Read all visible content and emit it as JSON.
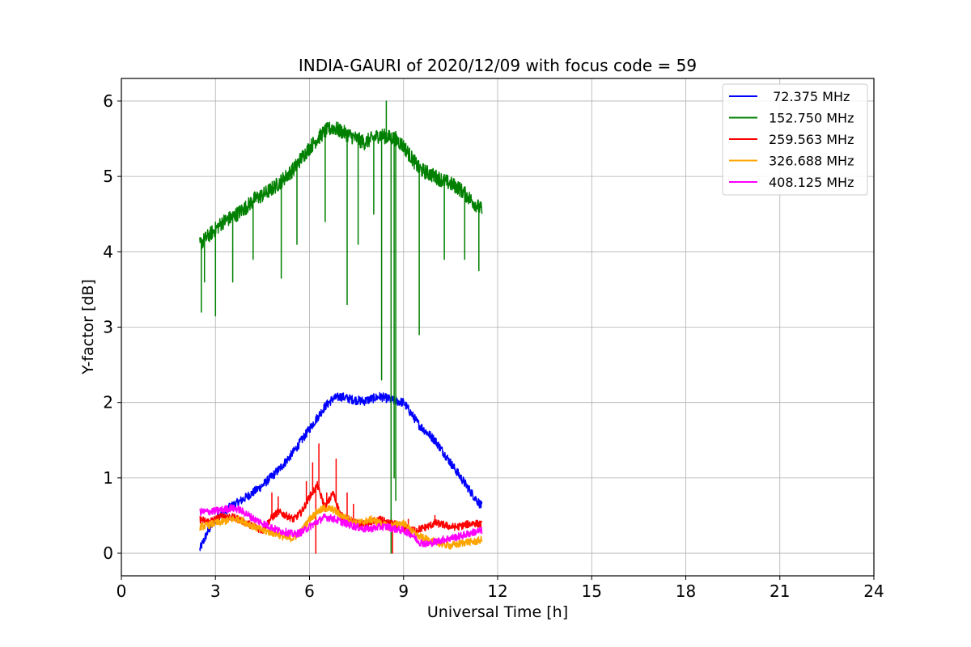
{
  "chart_data": {
    "type": "line",
    "title": "INDIA-GAURI of 2020/12/09 with focus code = 59",
    "xlabel": "Universal Time [h]",
    "ylabel": "Y-factor [dB]",
    "xlim": [
      0,
      24
    ],
    "ylim": [
      -0.3,
      6.3
    ],
    "xticks": [
      0,
      3,
      6,
      9,
      12,
      15,
      18,
      21,
      24
    ],
    "yticks": [
      0,
      1,
      2,
      3,
      4,
      5,
      6
    ],
    "grid": true,
    "legend_position": "top-right",
    "series": [
      {
        "name": " 72.375 MHz",
        "color": "#0000ff",
        "x": [
          2.5,
          2.75,
          3.0,
          3.25,
          3.5,
          3.75,
          4.0,
          4.25,
          4.5,
          4.75,
          5.0,
          5.25,
          5.5,
          5.75,
          6.0,
          6.25,
          6.5,
          6.75,
          7.0,
          7.25,
          7.5,
          7.75,
          8.0,
          8.25,
          8.5,
          8.75,
          9.0,
          9.25,
          9.5,
          9.75,
          10.0,
          10.25,
          10.5,
          10.75,
          11.0,
          11.25,
          11.5
        ],
        "values": [
          0.05,
          0.28,
          0.45,
          0.55,
          0.62,
          0.68,
          0.75,
          0.82,
          0.9,
          1.0,
          1.1,
          1.22,
          1.35,
          1.5,
          1.65,
          1.8,
          1.95,
          2.05,
          2.08,
          2.05,
          2.03,
          2.02,
          2.05,
          2.08,
          2.05,
          2.02,
          2.0,
          1.85,
          1.7,
          1.6,
          1.5,
          1.35,
          1.2,
          1.05,
          0.9,
          0.75,
          0.62
        ],
        "noise": 0.06
      },
      {
        "name": "152.750 MHz",
        "color": "#008000",
        "x": [
          2.5,
          2.75,
          3.0,
          3.25,
          3.5,
          3.75,
          4.0,
          4.25,
          4.5,
          4.75,
          5.0,
          5.25,
          5.5,
          5.75,
          6.0,
          6.25,
          6.5,
          6.75,
          7.0,
          7.25,
          7.5,
          7.75,
          8.0,
          8.25,
          8.5,
          8.75,
          9.0,
          9.25,
          9.5,
          9.75,
          10.0,
          10.25,
          10.5,
          10.75,
          11.0,
          11.25,
          11.5
        ],
        "values": [
          4.1,
          4.2,
          4.3,
          4.4,
          4.45,
          4.52,
          4.6,
          4.7,
          4.75,
          4.82,
          4.9,
          5.0,
          5.1,
          5.25,
          5.38,
          5.5,
          5.6,
          5.65,
          5.6,
          5.55,
          5.5,
          5.45,
          5.5,
          5.55,
          5.52,
          5.5,
          5.4,
          5.25,
          5.1,
          5.05,
          5.0,
          4.95,
          4.9,
          4.85,
          4.75,
          4.65,
          4.55
        ],
        "noise": 0.1,
        "dips": [
          [
            2.55,
            3.2
          ],
          [
            2.65,
            3.6
          ],
          [
            3.0,
            3.15
          ],
          [
            3.55,
            3.6
          ],
          [
            4.2,
            3.9
          ],
          [
            5.1,
            3.65
          ],
          [
            5.6,
            4.1
          ],
          [
            6.5,
            4.4
          ],
          [
            7.2,
            3.3
          ],
          [
            7.55,
            4.1
          ],
          [
            8.05,
            4.5
          ],
          [
            8.3,
            2.3
          ],
          [
            8.45,
            6.0
          ],
          [
            8.6,
            0.0
          ],
          [
            8.7,
            1.0
          ],
          [
            8.75,
            0.7
          ],
          [
            9.5,
            2.9
          ],
          [
            10.3,
            3.9
          ],
          [
            10.95,
            3.9
          ],
          [
            11.4,
            3.75
          ]
        ]
      },
      {
        "name": "259.563 MHz",
        "color": "#ff0000",
        "x": [
          2.5,
          2.75,
          3.0,
          3.25,
          3.5,
          3.75,
          4.0,
          4.25,
          4.5,
          4.75,
          5.0,
          5.25,
          5.5,
          5.75,
          6.0,
          6.25,
          6.5,
          6.75,
          7.0,
          7.25,
          7.5,
          7.75,
          8.0,
          8.25,
          8.5,
          8.75,
          9.0,
          9.25,
          9.5,
          9.75,
          10.0,
          10.25,
          10.5,
          10.75,
          11.0,
          11.25,
          11.5
        ],
        "values": [
          0.45,
          0.42,
          0.45,
          0.5,
          0.48,
          0.45,
          0.4,
          0.35,
          0.3,
          0.45,
          0.55,
          0.5,
          0.45,
          0.55,
          0.75,
          0.9,
          0.6,
          0.8,
          0.5,
          0.45,
          0.4,
          0.38,
          0.42,
          0.45,
          0.4,
          0.38,
          0.35,
          0.3,
          0.32,
          0.35,
          0.4,
          0.38,
          0.35,
          0.35,
          0.38,
          0.4,
          0.38
        ],
        "noise": 0.05,
        "spikes": [
          [
            4.8,
            0.8
          ],
          [
            5.0,
            0.75
          ],
          [
            5.9,
            0.95
          ],
          [
            6.1,
            1.2
          ],
          [
            6.3,
            1.45
          ],
          [
            6.55,
            0.8
          ],
          [
            6.85,
            1.25
          ],
          [
            7.2,
            0.8
          ],
          [
            7.4,
            0.65
          ],
          [
            9.15,
            0.45
          ],
          [
            10.0,
            0.5
          ],
          [
            6.2,
            0.0
          ],
          [
            8.65,
            0.0
          ]
        ]
      },
      {
        "name": "326.688 MHz",
        "color": "#ffa500",
        "x": [
          2.5,
          2.75,
          3.0,
          3.25,
          3.5,
          3.75,
          4.0,
          4.25,
          4.5,
          4.75,
          5.0,
          5.25,
          5.5,
          5.75,
          6.0,
          6.25,
          6.5,
          6.75,
          7.0,
          7.25,
          7.5,
          7.75,
          8.0,
          8.25,
          8.5,
          8.75,
          9.0,
          9.25,
          9.5,
          9.75,
          10.0,
          10.25,
          10.5,
          10.75,
          11.0,
          11.25,
          11.5
        ],
        "values": [
          0.35,
          0.37,
          0.4,
          0.42,
          0.45,
          0.45,
          0.4,
          0.35,
          0.3,
          0.28,
          0.25,
          0.2,
          0.2,
          0.3,
          0.45,
          0.55,
          0.6,
          0.58,
          0.5,
          0.45,
          0.4,
          0.42,
          0.45,
          0.4,
          0.35,
          0.38,
          0.4,
          0.3,
          0.22,
          0.18,
          0.15,
          0.12,
          0.1,
          0.12,
          0.15,
          0.15,
          0.18
        ],
        "noise": 0.05
      },
      {
        "name": "408.125 MHz",
        "color": "#ff00ff",
        "x": [
          2.5,
          2.75,
          3.0,
          3.25,
          3.5,
          3.75,
          4.0,
          4.25,
          4.5,
          4.75,
          5.0,
          5.25,
          5.5,
          5.75,
          6.0,
          6.25,
          6.5,
          6.75,
          7.0,
          7.25,
          7.5,
          7.75,
          8.0,
          8.25,
          8.5,
          8.75,
          9.0,
          9.25,
          9.5,
          9.75,
          10.0,
          10.25,
          10.5,
          10.75,
          11.0,
          11.25,
          11.5
        ],
        "values": [
          0.55,
          0.55,
          0.56,
          0.58,
          0.6,
          0.58,
          0.52,
          0.45,
          0.4,
          0.35,
          0.3,
          0.28,
          0.25,
          0.28,
          0.35,
          0.42,
          0.48,
          0.46,
          0.42,
          0.38,
          0.35,
          0.32,
          0.33,
          0.35,
          0.35,
          0.32,
          0.3,
          0.25,
          0.15,
          0.12,
          0.15,
          0.18,
          0.2,
          0.22,
          0.25,
          0.28,
          0.3
        ],
        "noise": 0.05
      }
    ]
  }
}
